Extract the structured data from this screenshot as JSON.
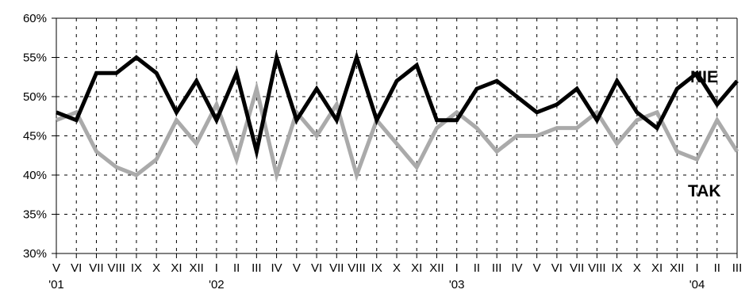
{
  "chart_data": {
    "type": "line",
    "title": "",
    "xlabel": "",
    "ylabel": "",
    "ylim": [
      30,
      60
    ],
    "ytick_values": [
      30,
      35,
      40,
      45,
      50,
      55,
      60
    ],
    "ytick_labels": [
      "30%",
      "35%",
      "40%",
      "45%",
      "50%",
      "55%",
      "60%"
    ],
    "grid": true,
    "categories": [
      "V",
      "VI",
      "VII",
      "VIII",
      "IX",
      "X",
      "XI",
      "XII",
      "I",
      "II",
      "III",
      "IV",
      "V",
      "VI",
      "VII",
      "VIII",
      "IX",
      "X",
      "XI",
      "XII",
      "I",
      "II",
      "III",
      "IV",
      "V",
      "VI",
      "VII",
      "VIII",
      "IX",
      "X",
      "XI",
      "XII",
      "I",
      "II",
      "III"
    ],
    "year_labels": [
      {
        "index": 0,
        "label": "'01"
      },
      {
        "index": 8,
        "label": "'02"
      },
      {
        "index": 20,
        "label": "'03"
      },
      {
        "index": 32,
        "label": "'04"
      }
    ],
    "series": [
      {
        "name": "NIE",
        "color": "#000000",
        "values": [
          48,
          47,
          53,
          53,
          55,
          53,
          48,
          52,
          47,
          53,
          43,
          55,
          47,
          51,
          47,
          55,
          47,
          52,
          54,
          47,
          47,
          51,
          52,
          50,
          48,
          49,
          51,
          47,
          52,
          48,
          46,
          51,
          53,
          49,
          52
        ]
      },
      {
        "name": "TAK",
        "color": "#aaaaaa",
        "values": [
          47,
          48,
          43,
          41,
          40,
          42,
          47,
          44,
          49,
          42,
          51,
          40,
          48,
          45,
          49,
          40,
          47,
          44,
          41,
          46,
          48,
          46,
          43,
          45,
          45,
          46,
          46,
          48,
          44,
          47,
          48,
          43,
          42,
          47,
          43
        ]
      }
    ]
  }
}
